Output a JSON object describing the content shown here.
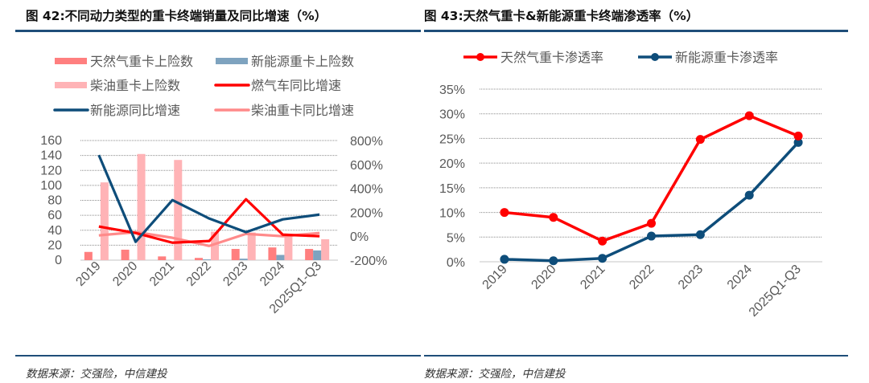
{
  "chart_data": [
    {
      "type": "bar",
      "title": "图 42:不同动力类型的重卡终端销量及同比增速（%）",
      "categories": [
        "2019",
        "2020",
        "2021",
        "2022",
        "2023",
        "2024",
        "2025Q1-Q3"
      ],
      "y_left": {
        "ylim": [
          0,
          160
        ],
        "ticks": [
          "0",
          "20",
          "40",
          "60",
          "80",
          "100",
          "120",
          "140",
          "160"
        ]
      },
      "y_right": {
        "ylim": [
          -200,
          800
        ],
        "ticks": [
          "-200%",
          "0%",
          "200%",
          "400%",
          "600%",
          "800%"
        ]
      },
      "grid": true,
      "legend_position": "top",
      "series": [
        {
          "name": "天然气重卡上险数",
          "kind": "bar",
          "axis": "left",
          "color": "#ff7f7f",
          "values": [
            11,
            14,
            5,
            3,
            15,
            17,
            15
          ]
        },
        {
          "name": "新能源重卡上险数",
          "kind": "bar",
          "axis": "left",
          "color": "#7ea3bf",
          "values": [
            0,
            0,
            0,
            1,
            2,
            7,
            13
          ]
        },
        {
          "name": "柴油重卡上险数",
          "kind": "bar",
          "axis": "left",
          "color": "#ffb3b6",
          "values": [
            104,
            142,
            134,
            38,
            37,
            33,
            28
          ]
        },
        {
          "name": "燃气车同比增速",
          "kind": "line",
          "axis": "right",
          "color": "#ff0000",
          "values": [
            81,
            27,
            -54,
            -40,
            309,
            13,
            0
          ]
        },
        {
          "name": "新能源同比增速",
          "kind": "line",
          "axis": "right",
          "color": "#0e4d7a",
          "values": [
            678,
            -47,
            302,
            148,
            34,
            141,
            181
          ]
        },
        {
          "name": "柴油重卡同比增速",
          "kind": "line",
          "axis": "right",
          "color": "#ff8a8a",
          "values": [
            7,
            34,
            -13,
            -81,
            20,
            0,
            27
          ]
        }
      ],
      "source": "数据来源：交强险，中信建投"
    },
    {
      "type": "line",
      "title": "图 43:天然气重卡&新能源重卡终端渗透率（%）",
      "categories": [
        "2019",
        "2020",
        "2021",
        "2022",
        "2023",
        "2024",
        "2025Q1-Q3"
      ],
      "ylim": [
        0,
        35
      ],
      "yticks": [
        "0%",
        "5%",
        "10%",
        "15%",
        "20%",
        "25%",
        "30%",
        "35%"
      ],
      "grid": true,
      "legend_position": "top",
      "series": [
        {
          "name": "天然气重卡渗透率",
          "color": "#ff0000",
          "values": [
            10.0,
            9.0,
            4.2,
            7.8,
            24.8,
            29.6,
            25.5
          ]
        },
        {
          "name": "新能源重卡渗透率",
          "color": "#0e4d7a",
          "values": [
            0.5,
            0.2,
            0.7,
            5.2,
            5.5,
            13.5,
            24.2
          ]
        }
      ],
      "source": "数据来源：交强险，中信建投"
    }
  ]
}
